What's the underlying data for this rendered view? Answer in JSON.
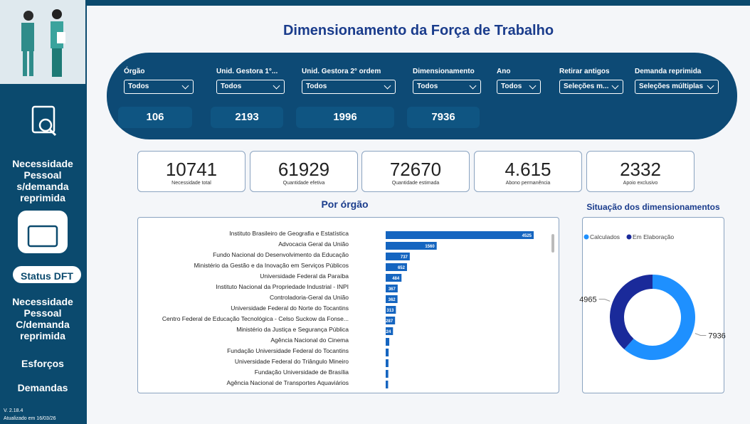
{
  "sidebar": {
    "menu": [
      "Necessidade Pessoal s/demanda reprimida",
      "Status DFT",
      "Necessidade Pessoal C/demanda reprimida",
      "Esforços",
      "Demandas"
    ],
    "version": "V. 2.18.4",
    "updated": "Atualizado em 16/03/26"
  },
  "header": {
    "title": "Dimensionamento da Força de Trabalho"
  },
  "filters": [
    {
      "label": "Órgão",
      "value": "Todos",
      "count": 106
    },
    {
      "label": "Unid. Gestora 1°...",
      "value": "Todos",
      "count": 2193
    },
    {
      "label": "Unid. Gestora 2° ordem",
      "value": "Todos",
      "count": 1996
    },
    {
      "label": "Dimensionamento",
      "value": "Todos",
      "count": 7936
    },
    {
      "label": "Ano",
      "value": "Todos"
    },
    {
      "label": "Retirar antigos",
      "value": "Seleções m..."
    },
    {
      "label": "Demanda reprimida",
      "value": "Seleções múltiplas"
    }
  ],
  "kpis": [
    {
      "value": 10741,
      "label": "Necessidade total"
    },
    {
      "value": 61929,
      "label": "Quantidade efetiva"
    },
    {
      "value": 72670,
      "label": "Quantidade estimada"
    },
    {
      "value": "4.615",
      "label": "Abono permanência"
    },
    {
      "value": 2332,
      "label": "Apoio exclusivo"
    }
  ],
  "chart_data": [
    {
      "type": "hbar",
      "title": "Por órgão",
      "color": "#1565c0",
      "categories": [
        "Instituto Brasileiro de Geografia e Estatística",
        "Advocacia Geral da União",
        "Fundo Nacional do Desenvolvimento da Educação",
        "Ministério da Gestão e da Inovação em Serviços Públicos",
        "Universidade Federal da Paraíba",
        "Instituto Nacional da Propriedade Industrial - INPI",
        "Controladoria-Geral da União",
        "Universidade Federal do Norte do Tocantins",
        "Centro Federal de Educação Tecnológica - Celso Suckow da Fonse...",
        "Ministério da Justiça e Segurança Pública",
        "Agência Nacional do Cinema",
        "Fundação Universidade Federal do Tocantins",
        "Universidade Federal do Triângulo Mineiro",
        "Fundação Universidade de Brasília",
        "Agência Nacional de Transportes Aquaviários"
      ],
      "values": [
        4525,
        1560,
        737,
        652,
        484,
        367,
        362,
        313,
        287,
        224,
        110,
        90,
        85,
        80,
        75
      ]
    },
    {
      "type": "donut",
      "title": "Situação dos dimensionamentos",
      "legend": "top-left",
      "categories": [
        "Calculados",
        "Em Elaboração"
      ],
      "values": [
        7936,
        4965
      ],
      "colors": [
        "#1e90ff",
        "#1a2a9a"
      ]
    }
  ]
}
